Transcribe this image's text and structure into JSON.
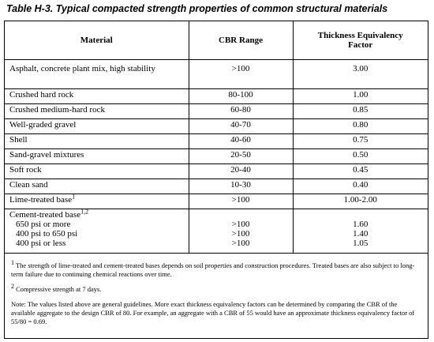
{
  "title": "Table H-3. Typical compacted strength properties of common structural materials",
  "table": {
    "headers": [
      "Material",
      "CBR Range",
      "Thickness Equivalency Factor"
    ],
    "rows": [
      {
        "material": "Asphalt, concrete plant mix, high stability",
        "cbr": ">100",
        "factor": "3.00"
      },
      {
        "material": "Crushed hard rock",
        "cbr": "80-100",
        "factor": "1.00"
      },
      {
        "material": "Crushed medium-hard rock",
        "cbr": "60-80",
        "factor": "0.85"
      },
      {
        "material": "Well-graded gravel",
        "cbr": "40-70",
        "factor": "0.80"
      },
      {
        "material": "Shell",
        "cbr": "40-60",
        "factor": "0.75"
      },
      {
        "material": "Sand-gravel mixtures",
        "cbr": "20-50",
        "factor": "0.50"
      },
      {
        "material": "Soft rock",
        "cbr": "20-40",
        "factor": "0.45"
      },
      {
        "material": "Clean sand",
        "cbr": "10-30",
        "factor": "0.40"
      },
      {
        "material": "Lime-treated base",
        "sup": "1",
        "cbr": ">100",
        "factor": "1.00-2.00"
      },
      {
        "material": "Cement-treated base",
        "sup": "1,2",
        "subrows": [
          {
            "material": "650 psi or more",
            "cbr": ">100",
            "factor": "1.60"
          },
          {
            "material": "400 psi to 650 psi",
            "cbr": ">100",
            "factor": "1.40"
          },
          {
            "material": "400 psi or less",
            "cbr": ">100",
            "factor": "1.05"
          }
        ]
      }
    ]
  },
  "footnotes": [
    {
      "mark": "1",
      "text": "The strength of lime-treated and cement-treated bases depends on soil properties and construction procedures.  Treated bases are also subject to long-term failure due to continuing chemical reactions over time."
    },
    {
      "mark": "2",
      "text": "Compressive strength at 7 days."
    }
  ],
  "note": "Note:  The values listed above are general guidelines.  More exact thickness equivalency factors can be determined by comparing the CBR of the available aggregate to the design CBR of 80.  For example, an aggregate with a CBR of 55 would have an approximate thickness equivalency factor of 55/80 = 0.69."
}
